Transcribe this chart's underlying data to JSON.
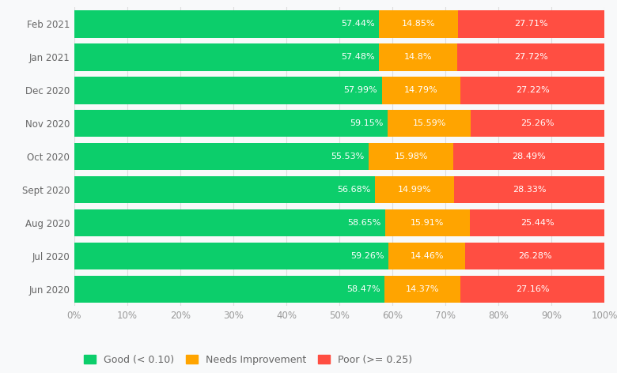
{
  "categories": [
    "Feb 2021",
    "Jan 2021",
    "Dec 2020",
    "Nov 2020",
    "Oct 2020",
    "Sept 2020",
    "Aug 2020",
    "Jul 2020",
    "Jun 2020"
  ],
  "good": [
    57.44,
    57.48,
    57.99,
    59.15,
    55.53,
    56.68,
    58.65,
    59.26,
    58.47
  ],
  "needs_improvement": [
    14.85,
    14.8,
    14.79,
    15.59,
    15.98,
    14.99,
    15.91,
    14.46,
    14.37
  ],
  "poor": [
    27.71,
    27.72,
    27.22,
    25.26,
    28.49,
    28.33,
    25.44,
    26.28,
    27.16
  ],
  "good_color": "#0CCE6B",
  "needs_improvement_color": "#FFA400",
  "poor_color": "#FF4E42",
  "background_color": "#f8f9fa",
  "plot_bg_color": "#f8f9fa",
  "bar_height": 0.82,
  "legend_labels": [
    "Good (< 0.10)",
    "Needs Improvement",
    "Poor (>= 0.25)"
  ],
  "xlabel_ticks": [
    "0%",
    "10%",
    "20%",
    "30%",
    "40%",
    "50%",
    "60%",
    "70%",
    "80%",
    "90%",
    "100%"
  ],
  "xlabel_tick_vals": [
    0,
    10,
    20,
    30,
    40,
    50,
    60,
    70,
    80,
    90,
    100
  ],
  "text_color_on_bar": "#ffffff",
  "font_size_bar_label": 8.0,
  "font_size_axis": 8.5,
  "font_size_legend": 9,
  "ytick_color": "#666666",
  "xtick_color": "#999999",
  "grid_color": "#dddddd"
}
